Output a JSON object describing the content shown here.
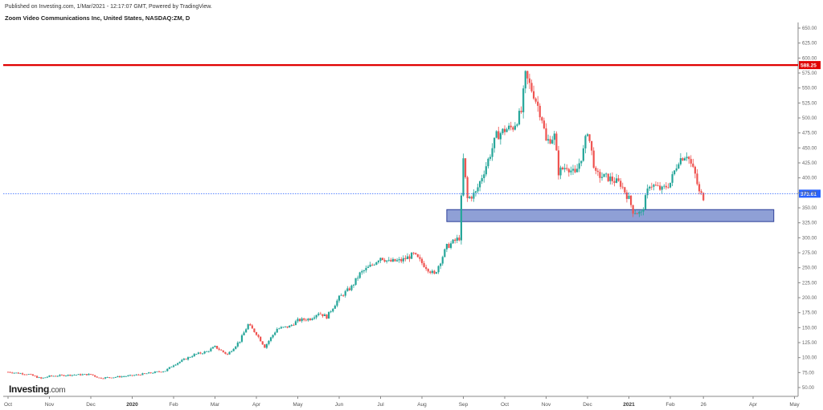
{
  "header": {
    "published": "Published on Investing.com, 1/Mar/2021 - 12:17:07 GMT, Powered by TradingView.",
    "title": "Zoom Video Communications Inc, United States, NASDAQ:ZM, D"
  },
  "logo": {
    "brand": "Investing",
    "suffix": ".com"
  },
  "colors": {
    "up": "#26a69a",
    "down": "#ef5350",
    "resistance": "#e00000",
    "support_fill": "#7b8fcf",
    "support_border": "#2c3f99",
    "last_price_bg": "#2962ff"
  },
  "chart_data": {
    "type": "candlestick",
    "title": "Zoom Video Communications Inc, United States, NASDAQ:ZM, D",
    "y_axis": {
      "ticks": [
        "650.00",
        "625.00",
        "600.00",
        "575.00",
        "550.00",
        "525.00",
        "500.00",
        "475.00",
        "450.00",
        "425.00",
        "400.00",
        "375.00",
        "350.00",
        "325.00",
        "300.00",
        "275.00",
        "250.00",
        "225.00",
        "200.00",
        "175.00",
        "150.00",
        "125.00",
        "100.00",
        "75.00",
        "50.00"
      ],
      "ylim": [
        40,
        660
      ]
    },
    "x_axis": {
      "labels": [
        {
          "t": 0,
          "text": "Oct"
        },
        {
          "t": 1,
          "text": "Nov"
        },
        {
          "t": 2,
          "text": "Dec"
        },
        {
          "t": 3,
          "text": "2020",
          "bold": true
        },
        {
          "t": 4,
          "text": "Feb"
        },
        {
          "t": 5,
          "text": "Mar"
        },
        {
          "t": 6,
          "text": "Apr"
        },
        {
          "t": 7,
          "text": "May"
        },
        {
          "t": 8,
          "text": "Jun"
        },
        {
          "t": 9,
          "text": "Jul"
        },
        {
          "t": 10,
          "text": "Aug"
        },
        {
          "t": 11,
          "text": "Sep"
        },
        {
          "t": 12,
          "text": "Oct"
        },
        {
          "t": 13,
          "text": "Nov"
        },
        {
          "t": 14,
          "text": "Dec"
        },
        {
          "t": 15,
          "text": "2021",
          "bold": true
        },
        {
          "t": 16,
          "text": "Feb"
        },
        {
          "t": 16.8,
          "text": "26"
        },
        {
          "t": 18,
          "text": "Apr"
        },
        {
          "t": 19,
          "text": "May"
        }
      ]
    },
    "resistance": {
      "value": 588.25,
      "label": "588.25"
    },
    "last_price": {
      "value": 373.61,
      "label": "373.61"
    },
    "support_zone": {
      "low": 327,
      "high": 347,
      "t_start": 10.6,
      "t_end": 18.5
    },
    "price_path": [
      [
        0,
        76
      ],
      [
        0.5,
        72
      ],
      [
        0.8,
        65
      ],
      [
        1.0,
        69
      ],
      [
        1.5,
        71
      ],
      [
        2.0,
        72
      ],
      [
        2.2,
        66
      ],
      [
        2.5,
        67
      ],
      [
        3.0,
        70
      ],
      [
        3.5,
        75
      ],
      [
        3.8,
        78
      ],
      [
        4.0,
        88
      ],
      [
        4.5,
        105
      ],
      [
        4.8,
        110
      ],
      [
        5.0,
        118
      ],
      [
        5.3,
        105
      ],
      [
        5.6,
        128
      ],
      [
        5.8,
        155
      ],
      [
        6.0,
        140
      ],
      [
        6.2,
        118
      ],
      [
        6.5,
        148
      ],
      [
        6.8,
        152
      ],
      [
        7.0,
        162
      ],
      [
        7.3,
        165
      ],
      [
        7.5,
        175
      ],
      [
        7.7,
        168
      ],
      [
        8.0,
        200
      ],
      [
        8.3,
        218
      ],
      [
        8.5,
        240
      ],
      [
        8.8,
        255
      ],
      [
        9.0,
        268
      ],
      [
        9.2,
        260
      ],
      [
        9.5,
        262
      ],
      [
        9.8,
        272
      ],
      [
        10.0,
        258
      ],
      [
        10.3,
        238
      ],
      [
        10.6,
        285
      ],
      [
        10.9,
        300
      ],
      [
        11.0,
        430
      ],
      [
        11.1,
        365
      ],
      [
        11.3,
        375
      ],
      [
        11.6,
        430
      ],
      [
        11.8,
        470
      ],
      [
        12.0,
        480
      ],
      [
        12.2,
        485
      ],
      [
        12.4,
        510
      ],
      [
        12.5,
        570
      ],
      [
        12.7,
        540
      ],
      [
        12.9,
        500
      ],
      [
        13.0,
        460
      ],
      [
        13.2,
        470
      ],
      [
        13.3,
        410
      ],
      [
        13.5,
        420
      ],
      [
        13.7,
        405
      ],
      [
        13.9,
        445
      ],
      [
        14.0,
        480
      ],
      [
        14.2,
        405
      ],
      [
        14.5,
        400
      ],
      [
        14.8,
        390
      ],
      [
        15.0,
        365
      ],
      [
        15.1,
        345
      ],
      [
        15.3,
        340
      ],
      [
        15.5,
        390
      ],
      [
        15.8,
        380
      ],
      [
        16.0,
        392
      ],
      [
        16.2,
        430
      ],
      [
        16.4,
        440
      ],
      [
        16.6,
        405
      ],
      [
        16.7,
        375
      ],
      [
        16.8,
        368
      ]
    ]
  }
}
